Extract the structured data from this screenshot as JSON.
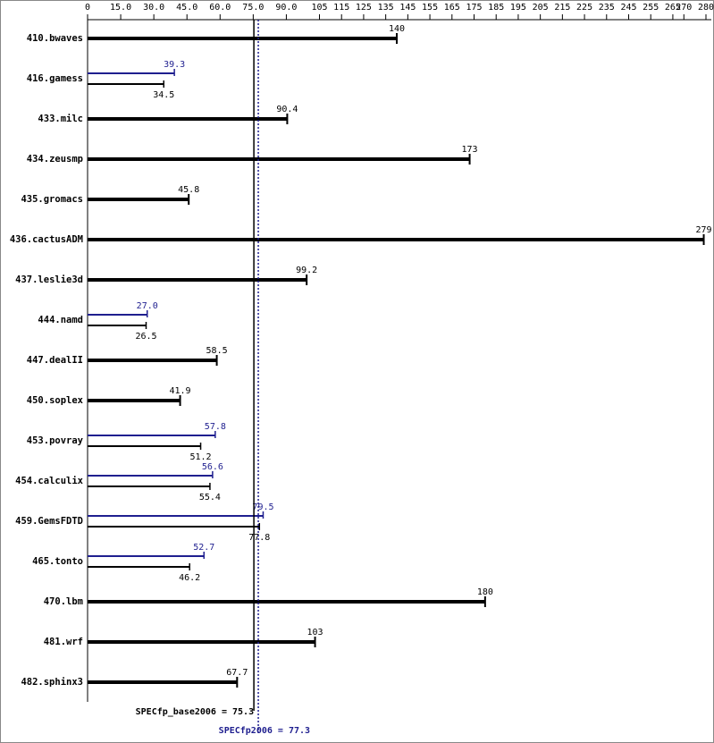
{
  "chart_data": {
    "type": "bar",
    "orientation": "horizontal",
    "categories": [
      "410.bwaves",
      "416.gamess",
      "433.milc",
      "434.zeusmp",
      "435.gromacs",
      "436.cactusADM",
      "437.leslie3d",
      "444.namd",
      "447.dealII",
      "450.soplex",
      "453.povray",
      "454.calculix",
      "459.GemsFDTD",
      "465.tonto",
      "470.lbm",
      "481.wrf",
      "482.sphinx3"
    ],
    "series": [
      {
        "color": "#000000",
        "values": [
          140,
          34.5,
          90.4,
          173,
          45.8,
          279,
          99.2,
          26.5,
          58.5,
          41.9,
          51.2,
          55.4,
          77.8,
          46.2,
          180,
          103,
          67.7
        ]
      },
      {
        "color": "#1f1f8f",
        "values": [
          null,
          39.3,
          null,
          null,
          null,
          null,
          null,
          27.0,
          null,
          null,
          57.8,
          56.6,
          79.5,
          52.7,
          null,
          null,
          null
        ],
        "value_labels": [
          null,
          "39.3",
          null,
          null,
          null,
          null,
          null,
          "27.0",
          null,
          null,
          "57.8",
          "56.6",
          "79.5",
          "52.7",
          null,
          null,
          null
        ]
      }
    ],
    "xlim": [
      0,
      280
    ],
    "xticks": [
      0,
      {
        "value": 15,
        "label": "15.0"
      },
      {
        "value": 30,
        "label": "30.0"
      },
      {
        "value": 45,
        "label": "45.0"
      },
      {
        "value": 60,
        "label": "60.0"
      },
      {
        "value": 75,
        "label": "75.0"
      },
      {
        "value": 90,
        "label": "90.0"
      },
      105,
      115,
      125,
      135,
      145,
      155,
      165,
      175,
      185,
      195,
      205,
      215,
      225,
      235,
      245,
      255,
      265,
      270,
      280
    ],
    "reference_lines": [
      {
        "label": "SPECfp_base2006 = 75.3",
        "value": 75.3,
        "color": "#000000",
        "style": "solid"
      },
      {
        "label": "SPECfp2006 = 77.3",
        "value": 77.3,
        "color": "#1f1f8f",
        "style": "dotted"
      }
    ]
  }
}
